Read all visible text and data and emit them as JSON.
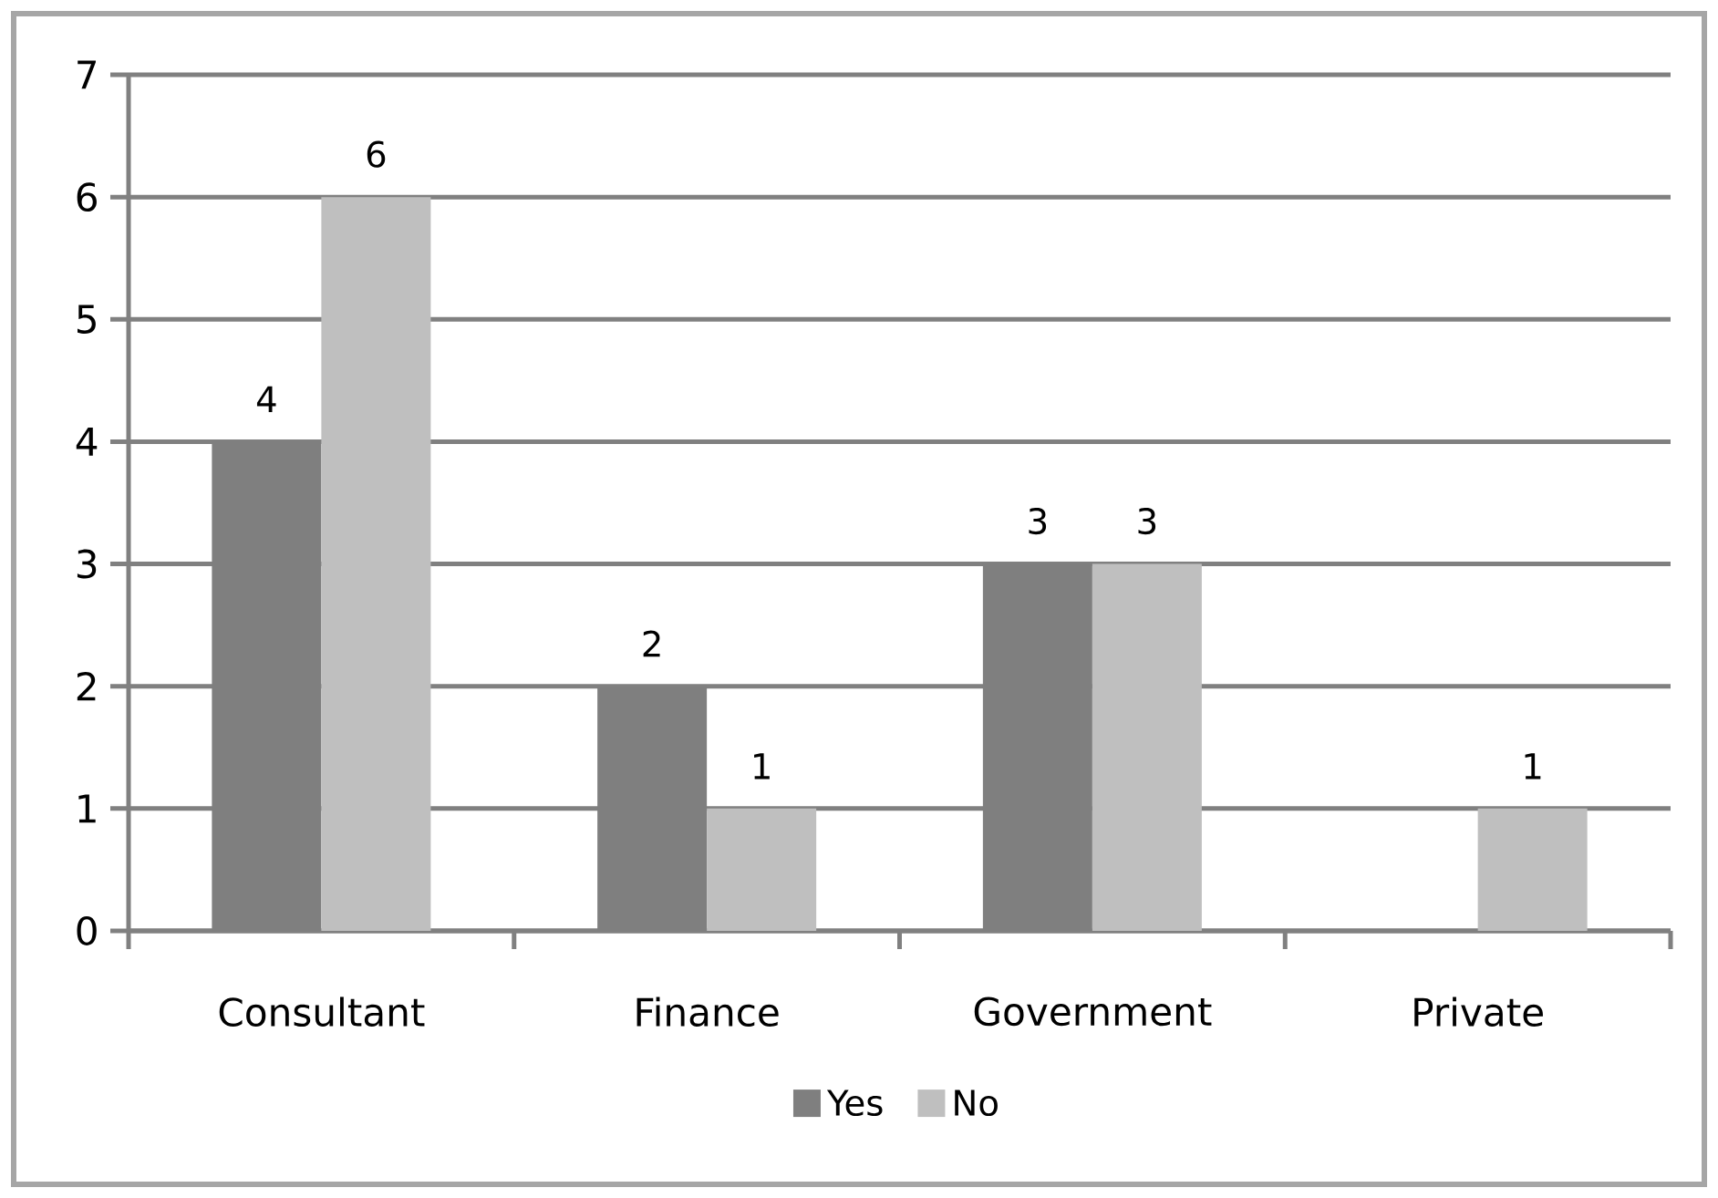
{
  "chart_data": {
    "type": "bar",
    "categories": [
      "Consultant",
      "Finance",
      "Government",
      "Private"
    ],
    "series": [
      {
        "name": "Yes",
        "color": "#7f7f7f",
        "values": [
          4,
          2,
          3,
          null
        ]
      },
      {
        "name": "No",
        "color": "#bfbfbf",
        "values": [
          6,
          1,
          3,
          1
        ]
      }
    ],
    "ylim": [
      0,
      7
    ],
    "yticks": [
      0,
      1,
      2,
      3,
      4,
      5,
      6,
      7
    ],
    "grid": "y",
    "legend": "bottom",
    "data_labels": true
  }
}
